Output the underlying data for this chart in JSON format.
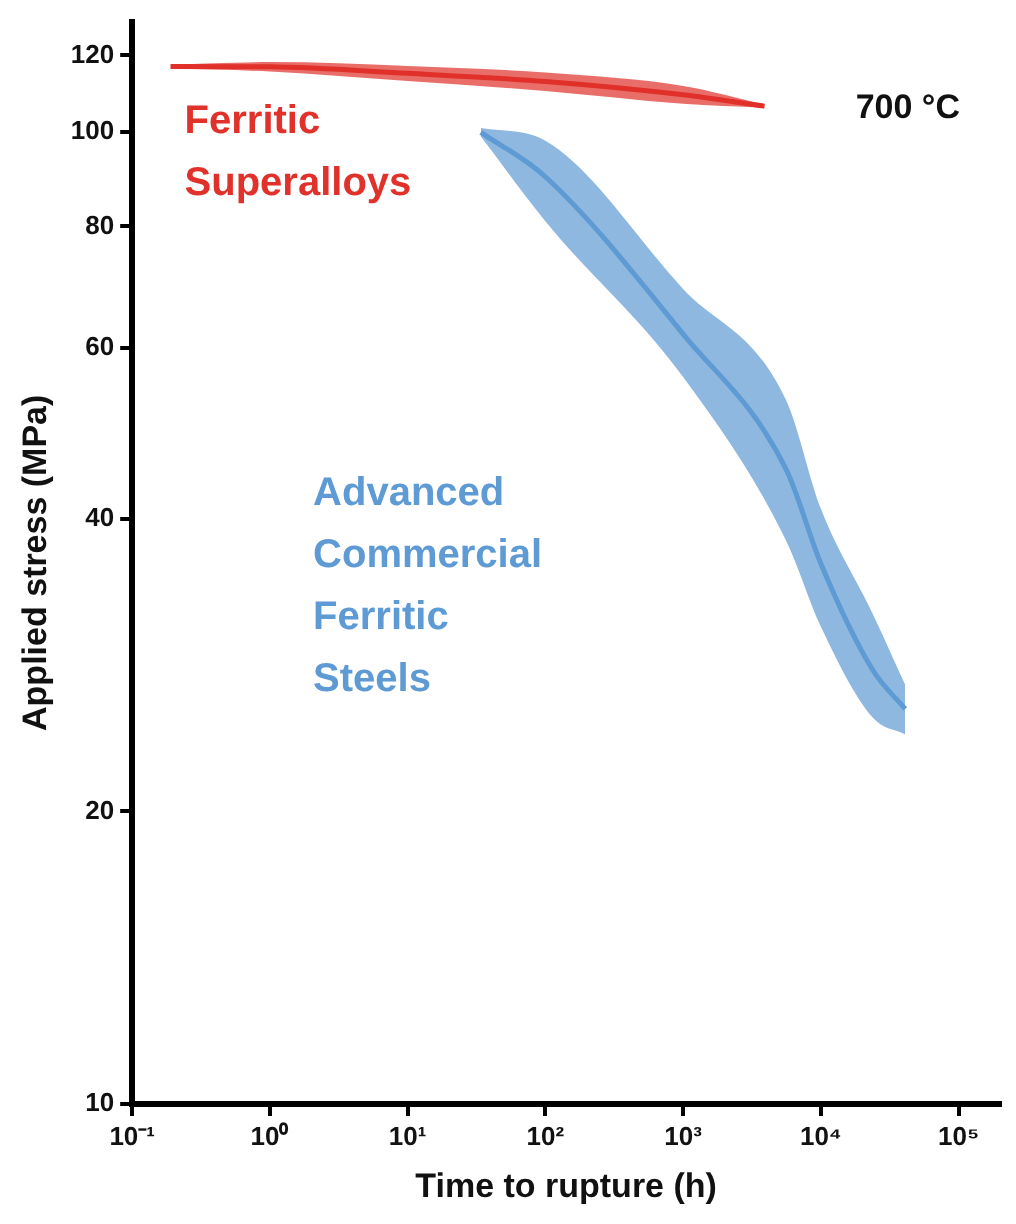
{
  "chart_data": {
    "type": "line",
    "annotations": [
      "700 °C"
    ],
    "xlabel": "Time to rupture (h)",
    "ylabel": "Applied stress (MPa)",
    "log": "xy",
    "xlim": [
      0.1,
      200000
    ],
    "xticks": [
      {
        "value": 0.1,
        "label": "10⁻¹"
      },
      {
        "value": 1,
        "label": "10⁰"
      },
      {
        "value": 10,
        "label": "10¹"
      },
      {
        "value": 100,
        "label": "10²"
      },
      {
        "value": 1000,
        "label": "10³"
      },
      {
        "value": 10000,
        "label": "10⁴"
      },
      {
        "value": 100000,
        "label": "10⁵"
      }
    ],
    "ylim": [
      10,
      130
    ],
    "yticks": [
      10,
      20,
      40,
      60,
      80,
      100,
      120
    ],
    "series": [
      {
        "name": "Ferritic Superalloys",
        "color": "#e0312a",
        "x": [
          0.19,
          1,
          10,
          100,
          1000,
          3900
        ],
        "values": [
          116.9,
          116.8,
          115,
          112.8,
          109.3,
          106.4
        ],
        "lower": [
          116.3,
          115.5,
          112.9,
          110.3,
          107,
          106
        ],
        "upper": [
          117.4,
          118.1,
          117,
          115.2,
          111.6,
          106.8
        ]
      },
      {
        "name": "Advanced Commercial Ferritic Steels",
        "color": "#5e9ad3",
        "x": [
          34,
          100,
          1000,
          5600,
          10000,
          23700,
          41000
        ],
        "values": [
          100,
          90,
          62,
          45,
          36,
          28,
          25.5
        ],
        "lower": [
          99,
          81,
          56,
          38,
          31,
          25,
          24
        ],
        "upper": [
          101,
          98,
          69,
          53,
          41,
          32,
          27
        ]
      }
    ]
  }
}
